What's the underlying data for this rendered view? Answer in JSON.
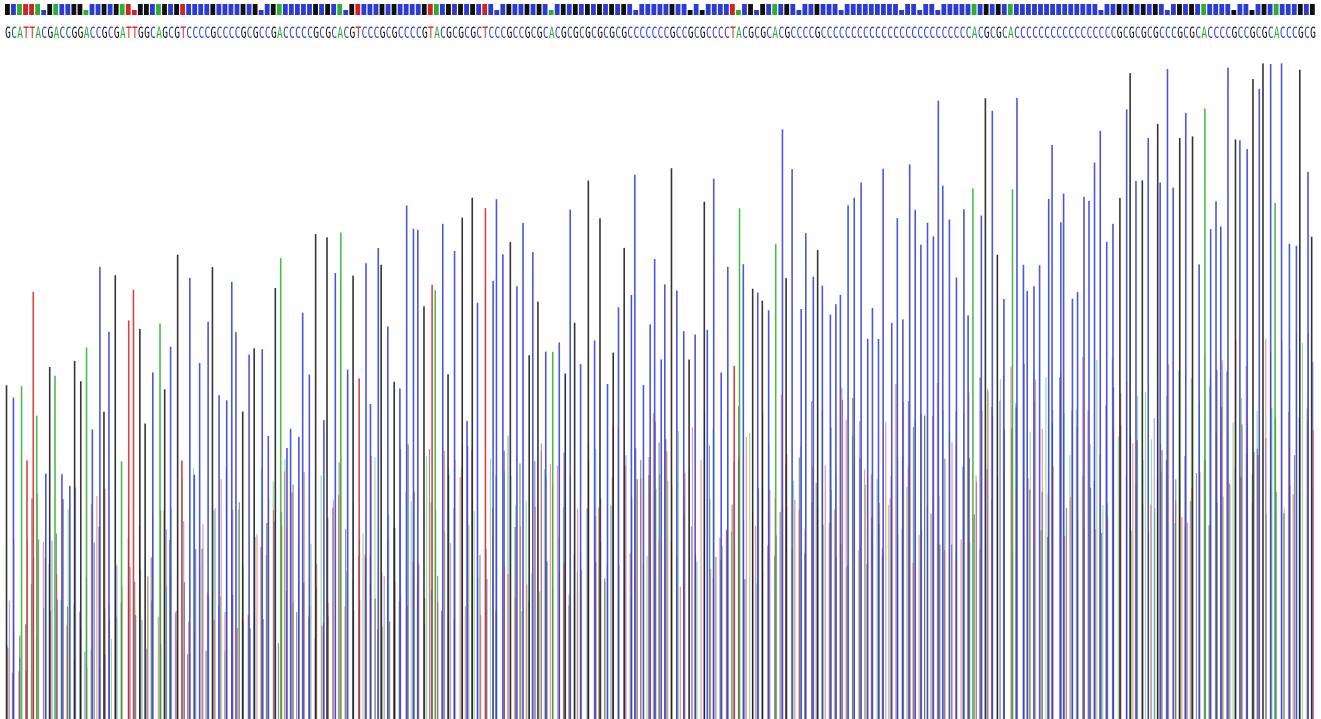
{
  "colors": {
    "A": "#2fae2f",
    "C": "#2b3bd6",
    "G": "#111111",
    "T": "#d32222"
  },
  "chart_data": {
    "type": "line",
    "title": "",
    "xlabel": "",
    "ylabel": "",
    "grid": false,
    "legend": "none",
    "bases": [
      "A",
      "C",
      "G",
      "T"
    ],
    "sequence": "GCATTACGACCGGACCGCGATTGGCAGCGTCCCCGCCCCGCGCCGACCCCCGCGCACGTCCCGCGCCCCGTACGCGCGCTCCCGCCGCGCACGCGCGCGCGCGCCCCCCCGCCGCGCCCCTACGCGCACGCCCCGCCCCCCCCCCCCCCCCCCCCCCCCCACGCGCACCCCCCCCCCCCCCCCCGCGCGCGCCCGCGCACCCCGCCGCGCACCCGCG",
    "ylim": [
      0,
      1000
    ],
    "peaks_summary": {
      "A": [
        210,
        300,
        450,
        550,
        600,
        640,
        700,
        720,
        850,
        880,
        900
      ],
      "C": [
        360,
        380,
        420,
        460,
        540,
        560,
        570,
        600,
        620,
        640
      ],
      "G": [
        430,
        560,
        610,
        660,
        680,
        700,
        720,
        760,
        800,
        880,
        900,
        960
      ],
      "T": [
        460,
        480,
        520,
        540,
        560,
        580,
        600,
        620
      ]
    }
  }
}
